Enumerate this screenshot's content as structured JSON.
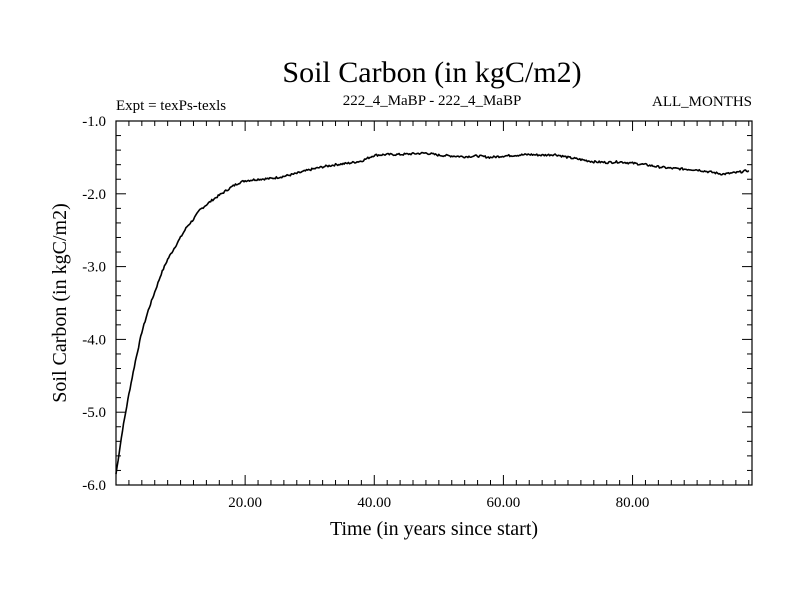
{
  "chart_data": {
    "type": "line",
    "title": "Soil Carbon (in kgC/m2)",
    "subtitle_left": "Expt = texPs-texls",
    "subtitle_center": "222_4_MaBP - 222_4_MaBP",
    "subtitle_right": "ALL_MONTHS",
    "xlabel": "Time (in years since start)",
    "ylabel": "Soil Carbon (in kgC/m2)",
    "xlim": [
      0,
      98.5
    ],
    "ylim": [
      -6.0,
      -1.0
    ],
    "x_ticks": [
      20,
      40,
      60,
      80
    ],
    "x_tick_labels": [
      "20.00",
      "40.00",
      "60.00",
      "80.00"
    ],
    "y_ticks": [
      -1.0,
      -2.0,
      -3.0,
      -4.0,
      -5.0,
      -6.0
    ],
    "y_tick_labels": [
      "-1.0",
      "-2.0",
      "-3.0",
      "-4.0",
      "-5.0",
      "-6.0"
    ],
    "grid": false,
    "series": [
      {
        "name": "Soil Carbon",
        "x": [
          0,
          1,
          2,
          3,
          4,
          5,
          6,
          7,
          8,
          9,
          10,
          11,
          12,
          13,
          14,
          15,
          16,
          17,
          18,
          19,
          20,
          21,
          22,
          24,
          26,
          28,
          30,
          32,
          34,
          36,
          38,
          40,
          42,
          44,
          46,
          48,
          50,
          52,
          54,
          56,
          58,
          60,
          62,
          64,
          66,
          68,
          70,
          72,
          74,
          76,
          78,
          80,
          82,
          84,
          86,
          88,
          90,
          92,
          94,
          96,
          98
        ],
        "y": [
          -5.85,
          -5.25,
          -4.75,
          -4.3,
          -3.9,
          -3.6,
          -3.35,
          -3.1,
          -2.9,
          -2.75,
          -2.6,
          -2.45,
          -2.35,
          -2.22,
          -2.15,
          -2.08,
          -2.02,
          -1.96,
          -1.9,
          -1.85,
          -1.82,
          -1.81,
          -1.8,
          -1.79,
          -1.76,
          -1.72,
          -1.67,
          -1.63,
          -1.6,
          -1.58,
          -1.55,
          -1.47,
          -1.46,
          -1.46,
          -1.45,
          -1.44,
          -1.47,
          -1.48,
          -1.49,
          -1.48,
          -1.5,
          -1.48,
          -1.47,
          -1.46,
          -1.47,
          -1.46,
          -1.5,
          -1.53,
          -1.56,
          -1.57,
          -1.56,
          -1.58,
          -1.6,
          -1.63,
          -1.65,
          -1.66,
          -1.67,
          -1.7,
          -1.73,
          -1.71,
          -1.68
        ],
        "color": "#000000"
      }
    ]
  }
}
